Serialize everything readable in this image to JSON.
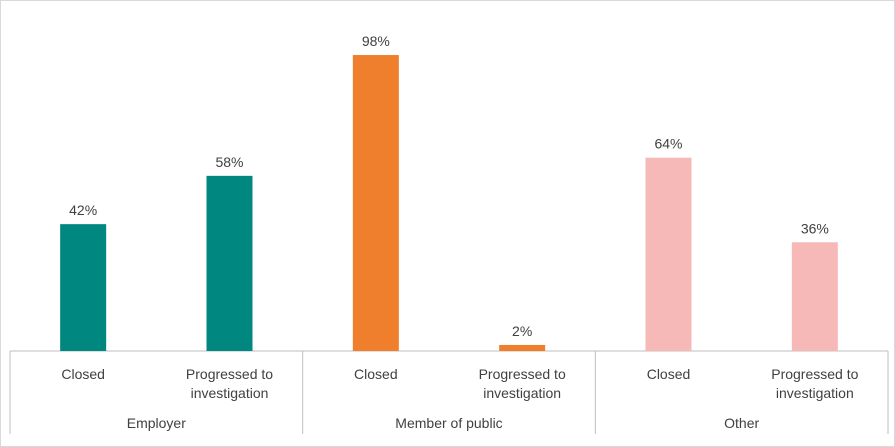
{
  "chart_data": {
    "type": "bar",
    "groups": [
      {
        "name": "Employer",
        "color": "#00877f",
        "categories": [
          "Closed",
          "Progressed to investigation"
        ],
        "values": [
          42,
          58
        ],
        "labels": [
          "42%",
          "58%"
        ]
      },
      {
        "name": "Member of public",
        "color": "#f07f2d",
        "categories": [
          "Closed",
          "Progressed to investigation"
        ],
        "values": [
          98,
          2
        ],
        "labels": [
          "98%",
          "2%"
        ]
      },
      {
        "name": "Other",
        "color": "#f7b8b8",
        "categories": [
          "Closed",
          "Progressed to investigation"
        ],
        "values": [
          64,
          36
        ],
        "labels": [
          "64%",
          "36%"
        ]
      }
    ],
    "ylim": [
      0,
      100
    ],
    "value_unit": "%",
    "grid": false,
    "legend": "none",
    "title": "",
    "xlabel": "",
    "ylabel": ""
  }
}
